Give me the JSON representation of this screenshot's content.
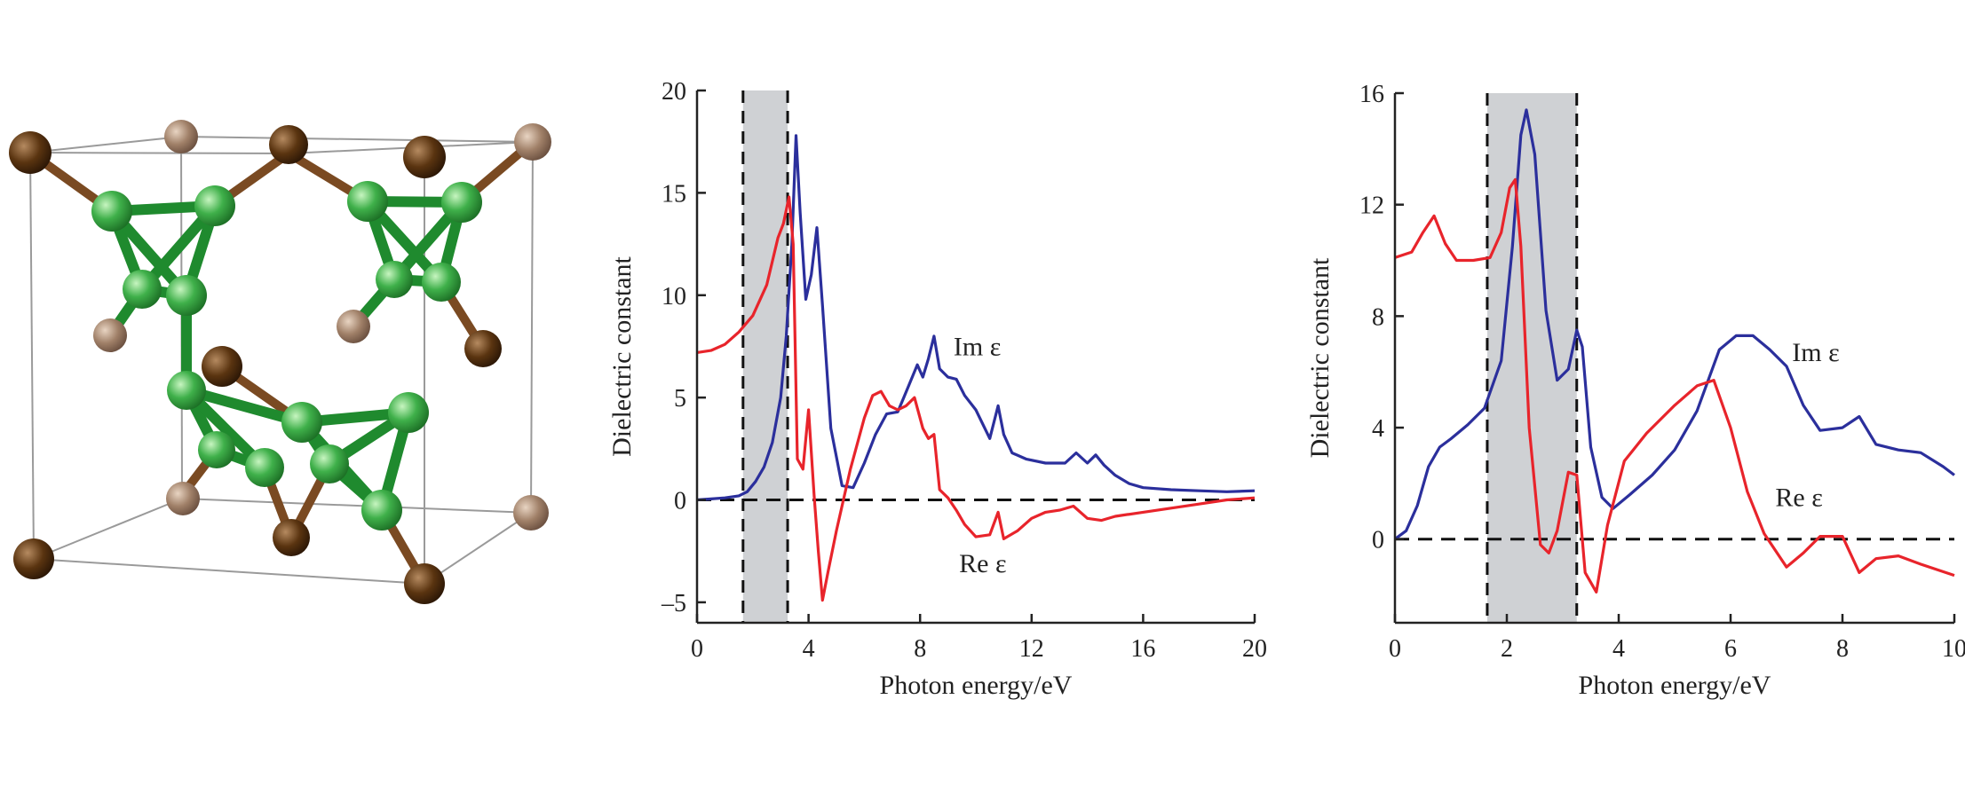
{
  "figure": {
    "structure_panel": {
      "caption": "",
      "atom_colors": {
        "metal_dark": "#5a3410",
        "metal_light": "#a08068",
        "cluster": "#2f9a3c",
        "cluster_light": "#6fcf70"
      }
    }
  },
  "colors": {
    "im": "#2b2f9c",
    "re": "#e8242b",
    "band": "#cfd1d4",
    "axis": "#222222"
  },
  "chart_data": [
    {
      "type": "line",
      "title": "",
      "xlabel": "Photon energy/eV",
      "ylabel": "Dielectric constant",
      "xlim": [
        0,
        20
      ],
      "ylim": [
        -6,
        20
      ],
      "xticks": [
        0,
        4,
        8,
        12,
        16,
        20
      ],
      "yticks": [
        -5,
        0,
        5,
        10,
        15,
        20
      ],
      "ytick_labels": [
        "–5",
        "0",
        "5",
        "10",
        "15",
        "20"
      ],
      "shaded_band": [
        1.65,
        3.25
      ],
      "zero_line": 0,
      "series": [
        {
          "name": "Im ε",
          "label": "Im ε",
          "label_at": [
            9.2,
            7.5
          ],
          "color": "#2b2f9c",
          "x": [
            0,
            0.5,
            1.0,
            1.5,
            1.8,
            2.1,
            2.4,
            2.7,
            3.0,
            3.2,
            3.4,
            3.55,
            3.7,
            3.9,
            4.1,
            4.3,
            4.5,
            4.8,
            5.2,
            5.6,
            6.0,
            6.4,
            6.8,
            7.2,
            7.6,
            7.9,
            8.1,
            8.3,
            8.5,
            8.7,
            9.0,
            9.3,
            9.6,
            10.0,
            10.5,
            10.8,
            11.0,
            11.3,
            11.8,
            12.5,
            13.2,
            13.6,
            14.0,
            14.3,
            14.6,
            15.0,
            15.5,
            16.0,
            17.0,
            18.0,
            19.0,
            20.0
          ],
          "y": [
            0,
            0.05,
            0.1,
            0.2,
            0.4,
            0.9,
            1.6,
            2.8,
            5.0,
            8.0,
            12.5,
            17.8,
            14.0,
            9.8,
            11.0,
            13.3,
            9.5,
            3.5,
            0.7,
            0.6,
            1.8,
            3.2,
            4.2,
            4.3,
            5.6,
            6.6,
            6.0,
            6.9,
            8.0,
            6.4,
            6.0,
            5.9,
            5.1,
            4.4,
            3.0,
            4.6,
            3.2,
            2.3,
            2.0,
            1.8,
            1.8,
            2.3,
            1.8,
            2.2,
            1.7,
            1.2,
            0.8,
            0.6,
            0.5,
            0.45,
            0.4,
            0.45
          ]
        },
        {
          "name": "Re ε",
          "label": "Re ε",
          "label_at": [
            9.4,
            -3.1
          ],
          "color": "#e8242b",
          "x": [
            0,
            0.5,
            1.0,
            1.5,
            2.0,
            2.5,
            2.9,
            3.1,
            3.3,
            3.45,
            3.6,
            3.8,
            4.0,
            4.2,
            4.35,
            4.5,
            4.7,
            5.0,
            5.5,
            6.0,
            6.3,
            6.6,
            6.9,
            7.2,
            7.5,
            7.8,
            8.1,
            8.3,
            8.5,
            8.7,
            9.0,
            9.3,
            9.6,
            10.0,
            10.5,
            10.8,
            11.0,
            11.5,
            12.0,
            12.5,
            13.0,
            13.5,
            14.0,
            14.5,
            15.0,
            16.0,
            17.0,
            18.0,
            19.0,
            20.0
          ],
          "y": [
            7.2,
            7.3,
            7.6,
            8.2,
            9.0,
            10.5,
            12.8,
            13.5,
            14.8,
            12.5,
            2.0,
            1.5,
            4.4,
            0.2,
            -2.5,
            -4.9,
            -3.5,
            -1.5,
            1.5,
            4.0,
            5.1,
            5.3,
            4.6,
            4.4,
            4.6,
            5.0,
            3.5,
            3.0,
            3.2,
            0.5,
            0.1,
            -0.5,
            -1.2,
            -1.8,
            -1.7,
            -0.6,
            -1.9,
            -1.5,
            -0.9,
            -0.6,
            -0.5,
            -0.3,
            -0.9,
            -1.0,
            -0.8,
            -0.6,
            -0.4,
            -0.2,
            0.0,
            0.1
          ]
        }
      ]
    },
    {
      "type": "line",
      "title": "",
      "xlabel": "Photon energy/eV",
      "ylabel": "Dielectric constant",
      "xlim": [
        0,
        10
      ],
      "ylim": [
        -3,
        16
      ],
      "xticks": [
        0,
        2,
        4,
        6,
        8,
        10
      ],
      "yticks": [
        0,
        4,
        8,
        12,
        16
      ],
      "ytick_labels": [
        "0",
        "4",
        "8",
        "12",
        "16"
      ],
      "shaded_band": [
        1.65,
        3.25
      ],
      "zero_line": 0,
      "series": [
        {
          "name": "Im ε",
          "label": "Im ε",
          "label_at": [
            7.1,
            6.7
          ],
          "color": "#2b2f9c",
          "x": [
            0,
            0.2,
            0.4,
            0.6,
            0.8,
            1.0,
            1.3,
            1.6,
            1.9,
            2.1,
            2.25,
            2.35,
            2.5,
            2.7,
            2.9,
            3.1,
            3.25,
            3.35,
            3.5,
            3.7,
            3.9,
            4.2,
            4.6,
            5.0,
            5.4,
            5.8,
            6.1,
            6.4,
            6.7,
            7.0,
            7.3,
            7.6,
            8.0,
            8.3,
            8.6,
            9.0,
            9.4,
            9.8,
            10.0
          ],
          "y": [
            0,
            0.3,
            1.2,
            2.6,
            3.3,
            3.6,
            4.1,
            4.7,
            6.4,
            10.5,
            14.5,
            15.4,
            13.8,
            8.2,
            5.7,
            6.1,
            7.5,
            6.9,
            3.3,
            1.5,
            1.1,
            1.6,
            2.3,
            3.2,
            4.6,
            6.8,
            7.3,
            7.3,
            6.8,
            6.2,
            4.8,
            3.9,
            4.0,
            4.4,
            3.4,
            3.2,
            3.1,
            2.6,
            2.3
          ]
        },
        {
          "name": "Re ε",
          "label": "Re ε",
          "label_at": [
            6.8,
            1.5
          ],
          "color": "#e8242b",
          "x": [
            0,
            0.3,
            0.5,
            0.7,
            0.9,
            1.1,
            1.4,
            1.7,
            1.9,
            2.05,
            2.15,
            2.25,
            2.4,
            2.6,
            2.75,
            2.9,
            3.1,
            3.25,
            3.4,
            3.6,
            3.8,
            4.1,
            4.5,
            5.0,
            5.4,
            5.7,
            6.0,
            6.3,
            6.6,
            7.0,
            7.3,
            7.6,
            8.0,
            8.3,
            8.6,
            9.0,
            9.4,
            10.0
          ],
          "y": [
            10.1,
            10.3,
            11.0,
            11.6,
            10.6,
            10.0,
            10.0,
            10.1,
            11.0,
            12.6,
            12.9,
            10.5,
            4.0,
            -0.2,
            -0.5,
            0.3,
            2.4,
            2.3,
            -1.2,
            -1.9,
            0.5,
            2.8,
            3.8,
            4.8,
            5.5,
            5.7,
            4.0,
            1.7,
            0.2,
            -1.0,
            -0.5,
            0.1,
            0.1,
            -1.2,
            -0.7,
            -0.6,
            -0.9,
            -1.3
          ]
        }
      ]
    }
  ]
}
